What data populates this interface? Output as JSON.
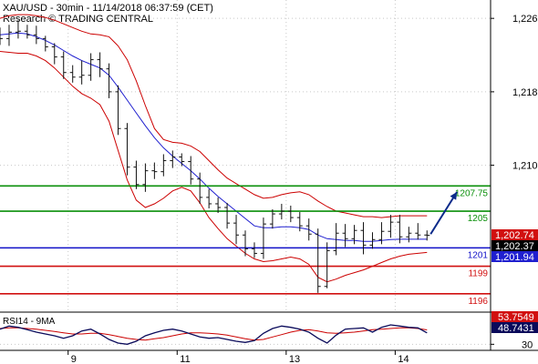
{
  "header": {
    "line1": "XAU/USD - 30min - 11/14/2018 06:37:59 (CET)",
    "line2": "Research © TRADING CENTRAL"
  },
  "chart_data": {
    "type": "line",
    "instrument": "XAU/USD",
    "timeframe": "30min",
    "price_axis": {
      "ylim": [
        1194.0,
        1228.0
      ],
      "ticks": [
        1226,
        1218,
        1210
      ],
      "tick_labels": [
        "1,226",
        "1,218",
        "1,210"
      ]
    },
    "x_axis": {
      "xlim": [
        0,
        54
      ],
      "ticks": [
        {
          "x": 7.5,
          "label": "9"
        },
        {
          "x": 19.5,
          "label": "11"
        },
        {
          "x": 31.5,
          "label": "13"
        },
        {
          "x": 43.5,
          "label": "14"
        }
      ]
    },
    "price_series": {
      "name": "price",
      "x": [
        0,
        1,
        2,
        3,
        4,
        5,
        6,
        7,
        8,
        9,
        10,
        11,
        12,
        13,
        14,
        15,
        16,
        17,
        18,
        19,
        20,
        21,
        22,
        23,
        24,
        25,
        26,
        27,
        28,
        29,
        30,
        31,
        32,
        33,
        34,
        35,
        36,
        37,
        38,
        39,
        40,
        41,
        42,
        43,
        44,
        45,
        46,
        47
      ],
      "open": [
        1224.0,
        1223.8,
        1224.5,
        1224.6,
        1224.2,
        1223.8,
        1222.9,
        1221.8,
        1220.1,
        1219.6,
        1219.8,
        1221.5,
        1220.5,
        1218.0,
        1214.0,
        1209.8,
        1207.9,
        1209.4,
        1209.3,
        1210.5,
        1210.9,
        1210.4,
        1208.5,
        1206.5,
        1205.8,
        1205.4,
        1203.7,
        1202.4,
        1200.9,
        1200.4,
        1203.6,
        1204.7,
        1205.0,
        1204.3,
        1203.4,
        1202.5,
        1196.8,
        1200.7,
        1202.6,
        1202.0,
        1202.9,
        1201.3,
        1201.9,
        1202.8,
        1203.8,
        1202.2,
        1202.6,
        1202.4
      ],
      "close": [
        1223.8,
        1224.5,
        1224.6,
        1224.2,
        1223.8,
        1222.9,
        1221.8,
        1220.1,
        1219.6,
        1219.8,
        1221.5,
        1220.5,
        1218.0,
        1214.0,
        1209.8,
        1207.9,
        1209.4,
        1209.3,
        1210.5,
        1210.9,
        1210.4,
        1208.5,
        1206.5,
        1205.8,
        1205.4,
        1203.7,
        1202.4,
        1200.9,
        1200.4,
        1203.6,
        1204.7,
        1205.0,
        1204.3,
        1203.4,
        1202.5,
        1196.8,
        1200.7,
        1202.6,
        1202.0,
        1202.9,
        1201.3,
        1201.9,
        1202.8,
        1203.8,
        1202.2,
        1202.6,
        1202.4,
        1202.37
      ],
      "high": [
        1225.0,
        1225.3,
        1225.8,
        1225.3,
        1225.2,
        1224.1,
        1223.3,
        1222.4,
        1220.9,
        1221.4,
        1222.2,
        1222.3,
        1221.1,
        1218.7,
        1214.6,
        1210.5,
        1210.2,
        1210.3,
        1211.2,
        1211.6,
        1211.3,
        1211.0,
        1209.2,
        1207.4,
        1206.5,
        1205.9,
        1204.6,
        1202.9,
        1201.6,
        1204.3,
        1205.2,
        1205.8,
        1205.6,
        1204.9,
        1204.2,
        1203.1,
        1201.6,
        1203.7,
        1203.6,
        1203.5,
        1203.8,
        1202.7,
        1203.8,
        1204.6,
        1204.6,
        1203.3,
        1203.7,
        1202.9
      ],
      "low": [
        1223.1,
        1223.0,
        1223.8,
        1223.8,
        1223.2,
        1222.4,
        1221.0,
        1219.4,
        1219.0,
        1218.8,
        1219.2,
        1219.6,
        1217.3,
        1213.3,
        1208.9,
        1207.4,
        1207.1,
        1208.5,
        1208.8,
        1209.7,
        1209.9,
        1207.9,
        1205.8,
        1205.3,
        1204.8,
        1203.1,
        1201.4,
        1200.1,
        1199.9,
        1199.8,
        1203.1,
        1204.1,
        1203.8,
        1202.8,
        1201.8,
        1196.1,
        1196.6,
        1200.2,
        1201.1,
        1201.4,
        1200.3,
        1200.9,
        1201.4,
        1202.1,
        1201.5,
        1201.6,
        1201.9,
        1201.8
      ]
    },
    "moving_average": {
      "color": "#1f1fcf",
      "values": [
        1224.2,
        1224.3,
        1224.4,
        1224.3,
        1224.0,
        1223.6,
        1223.1,
        1222.5,
        1221.9,
        1221.4,
        1221.0,
        1220.6,
        1219.8,
        1218.5,
        1217.1,
        1215.7,
        1214.3,
        1213.0,
        1211.9,
        1211.0,
        1210.2,
        1209.4,
        1208.5,
        1207.5,
        1206.6,
        1205.8,
        1205.0,
        1204.2,
        1203.4,
        1203.2,
        1203.2,
        1203.3,
        1203.3,
        1203.2,
        1203.0,
        1202.4,
        1202.0,
        1201.9,
        1201.8,
        1201.8,
        1201.7,
        1201.7,
        1201.8,
        1201.9,
        1201.94,
        1201.94,
        1201.94,
        1201.94
      ]
    },
    "bollinger_upper": {
      "color": "#cc0000",
      "values": [
        1226.0,
        1226.3,
        1226.4,
        1226.4,
        1226.3,
        1226.1,
        1225.8,
        1225.4,
        1225.0,
        1224.6,
        1224.3,
        1224.2,
        1224.0,
        1223.0,
        1221.5,
        1219.2,
        1216.5,
        1214.0,
        1212.8,
        1212.5,
        1212.4,
        1212.1,
        1211.5,
        1210.5,
        1209.5,
        1208.6,
        1208.0,
        1207.4,
        1206.8,
        1206.4,
        1206.5,
        1206.8,
        1207.0,
        1207.1,
        1206.8,
        1206.1,
        1205.5,
        1205.0,
        1204.8,
        1204.6,
        1204.4,
        1204.4,
        1204.3,
        1204.4,
        1204.5,
        1204.5,
        1204.5,
        1204.5
      ]
    },
    "bollinger_lower": {
      "color": "#cc0000",
      "values": [
        1222.4,
        1222.3,
        1222.2,
        1222.2,
        1221.9,
        1221.4,
        1220.6,
        1219.6,
        1218.6,
        1217.8,
        1217.3,
        1216.6,
        1214.8,
        1211.6,
        1208.4,
        1206.2,
        1205.4,
        1205.8,
        1206.4,
        1207.2,
        1207.6,
        1207.2,
        1205.9,
        1204.3,
        1203.1,
        1202.0,
        1201.2,
        1200.4,
        1199.8,
        1199.5,
        1199.6,
        1199.8,
        1200.0,
        1199.8,
        1199.2,
        1197.8,
        1197.3,
        1197.6,
        1198.0,
        1198.3,
        1198.6,
        1199.0,
        1199.4,
        1199.8,
        1200.1,
        1200.3,
        1200.4,
        1200.5
      ]
    },
    "forecast_arrow": {
      "color": "#0a2a8a",
      "from": [
        47.4,
        1202.5
      ],
      "to": [
        50.3,
        1207.1
      ]
    },
    "levels": [
      {
        "value": 1207.75,
        "label": "1207.75",
        "color": "#0a8f0a"
      },
      {
        "value": 1205.0,
        "label": "1205",
        "color": "#0a8f0a"
      },
      {
        "value": 1201.0,
        "label": "1201",
        "color": "#1010c8"
      },
      {
        "value": 1199.0,
        "label": "1199",
        "color": "#d11010"
      },
      {
        "value": 1196.0,
        "label": "1196",
        "color": "#d11010"
      }
    ],
    "price_badges": [
      {
        "value": 1202.74,
        "label": "1,202.74",
        "bg": "#d11010",
        "fg": "#ffffff"
      },
      {
        "value": 1202.37,
        "label": "1,202.37",
        "bg": "#000000",
        "fg": "#ffffff"
      },
      {
        "value": 1201.94,
        "label": "1,201.94",
        "bg": "#1f1fcf",
        "fg": "#ffffff"
      }
    ],
    "rsi": {
      "title": "RSI14 - 9MA",
      "ylim": [
        20,
        80
      ],
      "ticks": [
        30
      ],
      "rsi_color": "#0a0a5a",
      "ma_color": "#cc0000",
      "rsi_values": [
        55,
        60,
        58,
        54,
        50,
        47,
        44,
        40,
        44,
        52,
        55,
        47,
        38,
        32,
        30,
        35,
        44,
        49,
        53,
        55,
        52,
        47,
        42,
        40,
        41,
        38,
        35,
        33,
        36,
        48,
        56,
        60,
        58,
        55,
        50,
        40,
        32,
        45,
        55,
        56,
        57,
        50,
        58,
        62,
        60,
        58,
        57,
        48.7431
      ],
      "ma_values": [
        56,
        57,
        57,
        56,
        55,
        53,
        51,
        49,
        47,
        47,
        48,
        48,
        46,
        43,
        40,
        38,
        37,
        39,
        41,
        44,
        47,
        49,
        49,
        48,
        47,
        45,
        42,
        39,
        37,
        38,
        42,
        46,
        50,
        53,
        54,
        52,
        49,
        48,
        49,
        50,
        52,
        54,
        55,
        56,
        57,
        57,
        56,
        53.7549
      ],
      "badges": [
        {
          "value": 53.7549,
          "label": "53.7549",
          "bg": "#d11010",
          "fg": "#ffffff"
        },
        {
          "value": 48.7431,
          "label": "48.7431",
          "bg": "#0a0a5a",
          "fg": "#ffffff"
        }
      ]
    }
  }
}
